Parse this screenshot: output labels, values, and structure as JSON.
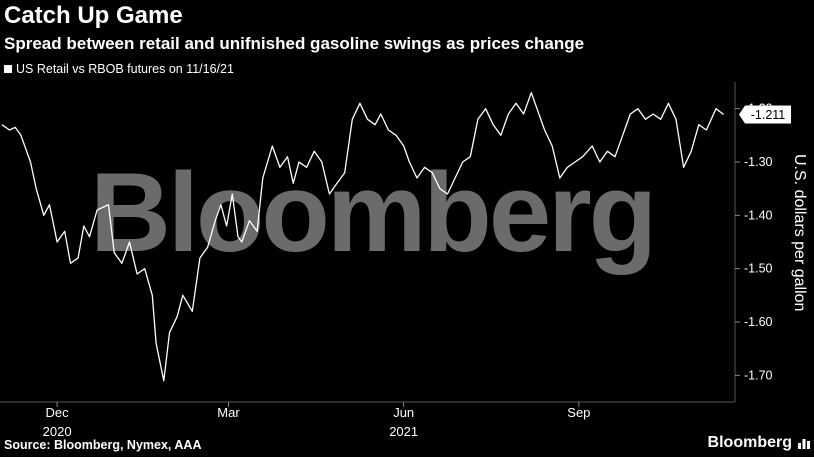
{
  "title": "Catch Up Game",
  "subtitle": "Spread between retail and unifnished gasoline swings as prices change",
  "source": "Source: Bloomberg, Nymex, AAA",
  "brand": "Bloomberg",
  "watermark": "Bloomberg",
  "colors": {
    "background": "#000000",
    "line": "#ffffff",
    "grid": "#555555",
    "callout_bg": "#ffffff",
    "callout_text": "#000000"
  },
  "chart_data": {
    "type": "line",
    "title": "Catch Up Game",
    "subtitle": "Spread between retail and unifnished gasoline swings as prices change",
    "ylabel": "U.S. dollars per gallon",
    "ylim": [
      -1.75,
      -1.15
    ],
    "y_ticks": [
      -1.2,
      -1.3,
      -1.4,
      -1.5,
      -1.6,
      -1.7
    ],
    "y_tick_labels": [
      "-1.20",
      "-1.30",
      "-1.40",
      "-1.50",
      "-1.60",
      "-1.70"
    ],
    "x_tick_labels": [
      {
        "label": "Dec",
        "year": "2020",
        "x": "2020-12-01"
      },
      {
        "label": "Mar",
        "year": "",
        "x": "2021-03-01"
      },
      {
        "label": "Jun",
        "year": "2021",
        "x": "2021-06-01"
      },
      {
        "label": "Sep",
        "year": "",
        "x": "2021-09-01"
      }
    ],
    "x_range": [
      "2020-11-01",
      "2021-11-22"
    ],
    "last_value_label": "-1.211",
    "series": [
      {
        "name": "US Retail vs RBOB futures on 11/16/21",
        "points": [
          [
            "2020-11-02",
            -1.23
          ],
          [
            "2020-11-06",
            -1.24
          ],
          [
            "2020-11-09",
            -1.235
          ],
          [
            "2020-11-12",
            -1.25
          ],
          [
            "2020-11-17",
            -1.3
          ],
          [
            "2020-11-20",
            -1.35
          ],
          [
            "2020-11-24",
            -1.4
          ],
          [
            "2020-11-27",
            -1.38
          ],
          [
            "2020-12-01",
            -1.45
          ],
          [
            "2020-12-05",
            -1.43
          ],
          [
            "2020-12-08",
            -1.49
          ],
          [
            "2020-12-12",
            -1.48
          ],
          [
            "2020-12-15",
            -1.42
          ],
          [
            "2020-12-18",
            -1.44
          ],
          [
            "2020-12-22",
            -1.39
          ],
          [
            "2020-12-28",
            -1.38
          ],
          [
            "2020-12-31",
            -1.47
          ],
          [
            "2021-01-04",
            -1.49
          ],
          [
            "2021-01-08",
            -1.45
          ],
          [
            "2021-01-12",
            -1.51
          ],
          [
            "2021-01-16",
            -1.5
          ],
          [
            "2021-01-20",
            -1.55
          ],
          [
            "2021-01-22",
            -1.64
          ],
          [
            "2021-01-26",
            -1.71
          ],
          [
            "2021-01-29",
            -1.62
          ],
          [
            "2021-02-02",
            -1.59
          ],
          [
            "2021-02-05",
            -1.55
          ],
          [
            "2021-02-10",
            -1.58
          ],
          [
            "2021-02-14",
            -1.48
          ],
          [
            "2021-02-18",
            -1.46
          ],
          [
            "2021-02-22",
            -1.41
          ],
          [
            "2021-02-25",
            -1.38
          ],
          [
            "2021-02-28",
            -1.42
          ],
          [
            "2021-03-03",
            -1.36
          ],
          [
            "2021-03-06",
            -1.44
          ],
          [
            "2021-03-08",
            -1.45
          ],
          [
            "2021-03-12",
            -1.41
          ],
          [
            "2021-03-16",
            -1.43
          ],
          [
            "2021-03-19",
            -1.33
          ],
          [
            "2021-03-24",
            -1.27
          ],
          [
            "2021-03-28",
            -1.31
          ],
          [
            "2021-04-01",
            -1.29
          ],
          [
            "2021-04-04",
            -1.34
          ],
          [
            "2021-04-07",
            -1.3
          ],
          [
            "2021-04-11",
            -1.31
          ],
          [
            "2021-04-15",
            -1.28
          ],
          [
            "2021-04-19",
            -1.3
          ],
          [
            "2021-04-23",
            -1.36
          ],
          [
            "2021-04-27",
            -1.34
          ],
          [
            "2021-05-01",
            -1.32
          ],
          [
            "2021-05-05",
            -1.22
          ],
          [
            "2021-05-09",
            -1.19
          ],
          [
            "2021-05-13",
            -1.22
          ],
          [
            "2021-05-17",
            -1.23
          ],
          [
            "2021-05-20",
            -1.21
          ],
          [
            "2021-05-24",
            -1.24
          ],
          [
            "2021-05-28",
            -1.25
          ],
          [
            "2021-06-01",
            -1.27
          ],
          [
            "2021-06-04",
            -1.3
          ],
          [
            "2021-06-08",
            -1.33
          ],
          [
            "2021-06-12",
            -1.31
          ],
          [
            "2021-06-16",
            -1.32
          ],
          [
            "2021-06-20",
            -1.35
          ],
          [
            "2021-06-24",
            -1.36
          ],
          [
            "2021-06-28",
            -1.33
          ],
          [
            "2021-07-02",
            -1.3
          ],
          [
            "2021-07-06",
            -1.29
          ],
          [
            "2021-07-10",
            -1.22
          ],
          [
            "2021-07-14",
            -1.2
          ],
          [
            "2021-07-18",
            -1.23
          ],
          [
            "2021-07-22",
            -1.25
          ],
          [
            "2021-07-26",
            -1.21
          ],
          [
            "2021-07-30",
            -1.19
          ],
          [
            "2021-08-03",
            -1.21
          ],
          [
            "2021-08-07",
            -1.17
          ],
          [
            "2021-08-10",
            -1.2
          ],
          [
            "2021-08-14",
            -1.24
          ],
          [
            "2021-08-18",
            -1.27
          ],
          [
            "2021-08-22",
            -1.33
          ],
          [
            "2021-08-26",
            -1.31
          ],
          [
            "2021-08-30",
            -1.3
          ],
          [
            "2021-09-03",
            -1.29
          ],
          [
            "2021-09-08",
            -1.27
          ],
          [
            "2021-09-12",
            -1.3
          ],
          [
            "2021-09-16",
            -1.28
          ],
          [
            "2021-09-20",
            -1.29
          ],
          [
            "2021-09-24",
            -1.25
          ],
          [
            "2021-09-28",
            -1.21
          ],
          [
            "2021-10-02",
            -1.2
          ],
          [
            "2021-10-06",
            -1.22
          ],
          [
            "2021-10-10",
            -1.21
          ],
          [
            "2021-10-14",
            -1.22
          ],
          [
            "2021-10-18",
            -1.19
          ],
          [
            "2021-10-22",
            -1.22
          ],
          [
            "2021-10-26",
            -1.31
          ],
          [
            "2021-10-30",
            -1.28
          ],
          [
            "2021-11-03",
            -1.23
          ],
          [
            "2021-11-07",
            -1.24
          ],
          [
            "2021-11-12",
            -1.2
          ],
          [
            "2021-11-16",
            -1.211
          ]
        ]
      }
    ]
  }
}
